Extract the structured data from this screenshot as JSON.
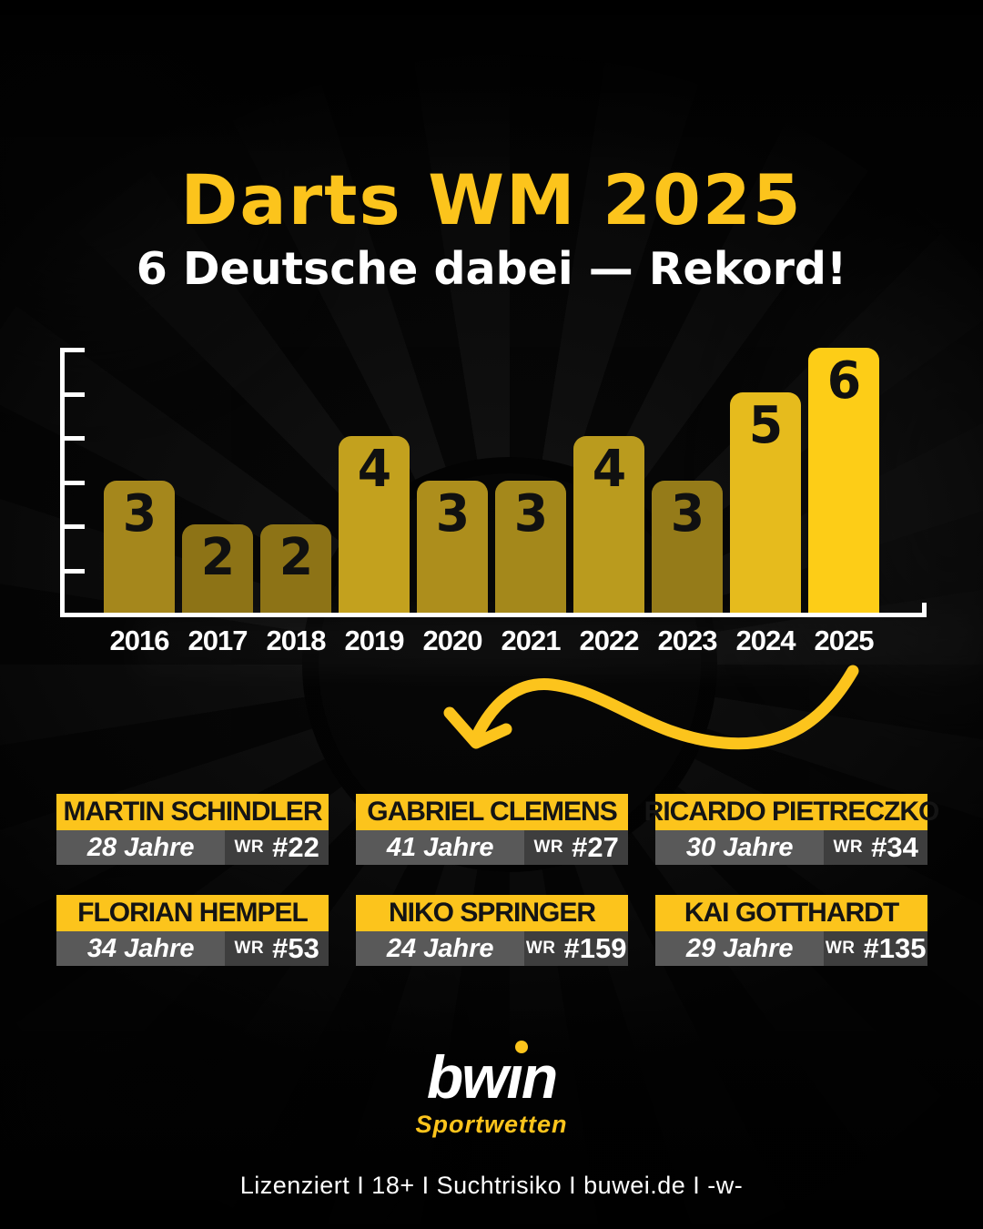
{
  "page": {
    "title": "Darts WM 2025",
    "subtitle": "6 Deutsche dabei — Rekord!",
    "footer": "Lizenziert I 18+ I Suchtrisiko I buwei.de I -w-"
  },
  "chart_data": {
    "type": "bar",
    "categories": [
      "2016",
      "2017",
      "2018",
      "2019",
      "2020",
      "2021",
      "2022",
      "2023",
      "2024",
      "2025"
    ],
    "values": [
      3,
      2,
      2,
      4,
      3,
      3,
      4,
      3,
      5,
      6
    ],
    "bar_colors": [
      "#a5871c",
      "#8d7316",
      "#8d7316",
      "#c3a11e",
      "#ad8e1c",
      "#a4881b",
      "#ba9b1e",
      "#957b19",
      "#e6bb1d",
      "#fdcd17"
    ],
    "value_labels_on_bars": true,
    "value_label_color": "#101010",
    "xlabel": "",
    "ylabel": "",
    "ylim": [
      0,
      6
    ],
    "yticks": [
      1,
      2,
      3,
      4,
      5,
      6
    ],
    "grid": false,
    "legend": false,
    "axis_color": "#ffffff"
  },
  "players": [
    {
      "name": "MARTIN SCHINDLER",
      "age": "28 Jahre",
      "wr_label": "WR",
      "rank": "#22"
    },
    {
      "name": "GABRIEL CLEMENS",
      "age": "41 Jahre",
      "wr_label": "WR",
      "rank": "#27"
    },
    {
      "name": "RICARDO PIETRECZKO",
      "age": "30 Jahre",
      "wr_label": "WR",
      "rank": "#34"
    },
    {
      "name": "FLORIAN HEMPEL",
      "age": "34 Jahre",
      "wr_label": "WR",
      "rank": "#53"
    },
    {
      "name": "NIKO SPRINGER",
      "age": "24 Jahre",
      "wr_label": "WR",
      "rank": "#159"
    },
    {
      "name": "KAI GOTTHARDT",
      "age": "29 Jahre",
      "wr_label": "WR",
      "rank": "#135"
    }
  ],
  "logo": {
    "brand": "bwin",
    "tagline": "Sportwetten"
  },
  "colors": {
    "accent_yellow": "#fcc41c",
    "highlight_bar_yellow": "#fdcd17",
    "card_age_bg": "#595959",
    "card_rank_bg": "#3e3e3e",
    "arrow_yellow": "#fcc41c",
    "text_white": "#ffffff",
    "text_black": "#141414"
  }
}
